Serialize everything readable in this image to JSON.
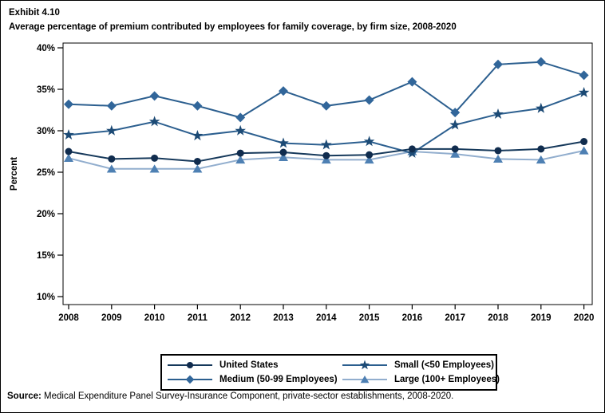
{
  "header": {
    "exhibit_number": "Exhibit 4.10",
    "title": "Average percentage of premium contributed by employees for family coverage, by firm size, 2008-2020"
  },
  "chart_data": {
    "type": "line",
    "title": "Exhibit 4.10",
    "subtitle": "Average percentage of premium contributed by employees for family coverage, by firm size, 2008-2020",
    "xlabel": "",
    "ylabel": "Percent",
    "x": [
      2008,
      2009,
      2010,
      2011,
      2012,
      2013,
      2014,
      2015,
      2016,
      2017,
      2018,
      2019,
      2020
    ],
    "ylim": [
      10,
      40
    ],
    "yticks": [
      40,
      35,
      30,
      25,
      20,
      15,
      10
    ],
    "ytick_suffix": "%",
    "grid": false,
    "legend_position": "bottom",
    "frame_color": "#000000",
    "series": [
      {
        "name": "United States",
        "marker": "circle",
        "marker_color": "#102C4E",
        "line_color": "#16395B",
        "values": [
          27.5,
          26.6,
          26.7,
          26.3,
          27.3,
          27.4,
          27.0,
          27.1,
          27.8,
          27.8,
          27.6,
          27.8,
          28.7
        ]
      },
      {
        "name": "Small (<50 Employees)",
        "marker": "star",
        "marker_color": "#1C4A75",
        "line_color": "#2C5F8F",
        "values": [
          29.5,
          30.0,
          31.1,
          29.4,
          30.0,
          28.5,
          28.3,
          28.7,
          27.3,
          30.7,
          32.0,
          32.7,
          34.6
        ]
      },
      {
        "name": "Medium (50-99 Employees)",
        "marker": "diamond",
        "marker_color": "#31669A",
        "line_color": "#2C5F8F",
        "values": [
          33.2,
          33.0,
          34.2,
          33.0,
          31.6,
          34.8,
          33.0,
          33.7,
          35.9,
          32.2,
          38.0,
          38.3,
          36.7
        ]
      },
      {
        "name": "Large (100+ Employees)",
        "marker": "triangle",
        "marker_color": "#4E80B3",
        "line_color": "#92AECE",
        "values": [
          26.7,
          25.4,
          25.4,
          25.4,
          26.5,
          26.8,
          26.5,
          26.5,
          27.5,
          27.2,
          26.6,
          26.5,
          27.6
        ]
      }
    ]
  },
  "source": {
    "label": "Source:",
    "text": " Medical Expenditure Panel Survey-Insurance Component, private-sector establishments, 2008-2020."
  }
}
